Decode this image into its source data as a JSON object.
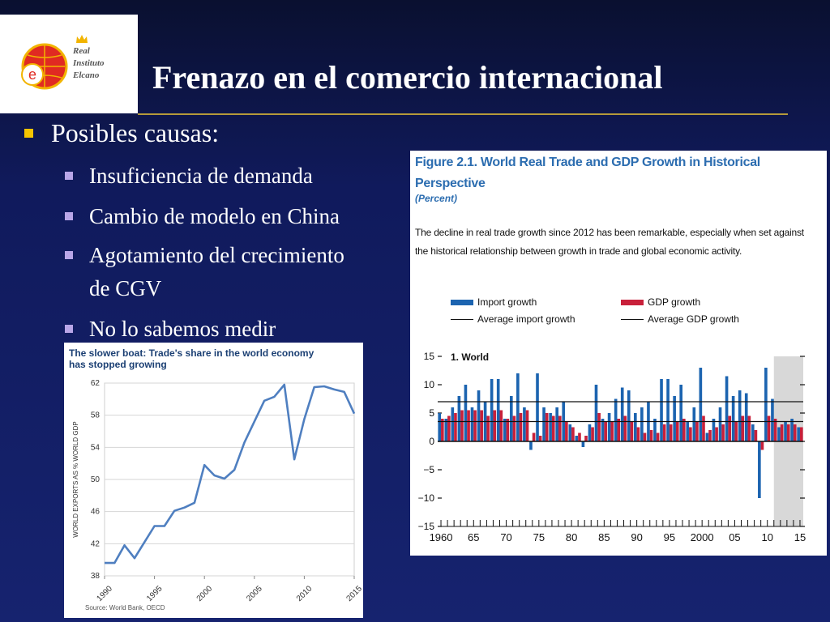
{
  "header": {
    "logo_text": [
      "Real",
      "Instituto",
      "Elcano"
    ],
    "logo_letter": "e",
    "title": "Frenazo en el comercio internacional"
  },
  "bullets": {
    "main": "Posibles causas:",
    "items": [
      "Insuficiencia de demanda",
      "Cambio de modelo en China",
      "Agotamiento del crecimiento",
      "de CGV",
      "No lo sabemos medir"
    ]
  },
  "colors": {
    "background": "#16236f",
    "bullet_yellow": "#f5c400",
    "bullet_lavender": "#b9a6e8",
    "rule_gold": "#b59a3a",
    "import_blue": "#1c64b0",
    "gdp_red": "#c8203a",
    "line_blue": "#4f7fc0"
  },
  "left_chart": {
    "title": "The slower boat: Trade's share in the world economy has stopped growing",
    "source": "Source: World Bank, OECD"
  },
  "right_figure": {
    "title_line1": "Figure 2.1. World Real Trade and GDP Growth in Historical",
    "title_line2": "Perspective",
    "subtitle": "(Percent)",
    "description": "The decline in real trade growth since 2012 has been remarkable, especially when set against the historical relationship between growth in trade and global economic activity.",
    "legend": {
      "import_growth": "Import growth",
      "gdp_growth": "GDP growth",
      "avg_import": "Average import growth",
      "avg_gdp": "Average GDP growth"
    },
    "panel_label": "1. World"
  },
  "chart_data": [
    {
      "type": "line",
      "title": "The slower boat: Trade's share in the world economy has stopped growing",
      "ylabel": "WORLD EXPORTS AS % WORLD GDP",
      "xlabel": "",
      "x_ticks": [
        "1990",
        "1995",
        "2000",
        "2005",
        "2010",
        "2015"
      ],
      "y_ticks": [
        "38",
        "42",
        "46",
        "50",
        "54",
        "58",
        "62"
      ],
      "ylim": [
        38,
        62
      ],
      "xlim": [
        1990,
        2015
      ],
      "grid": true,
      "series": [
        {
          "x": [
            1990,
            1991,
            1992,
            1993,
            1994,
            1995,
            1996,
            1997,
            1998,
            1999,
            2000,
            2001,
            2002,
            2003,
            2004,
            2005,
            2006,
            2007,
            2008,
            2009,
            2010,
            2011,
            2012,
            2013,
            2014,
            2015
          ],
          "y": [
            39.6,
            39.6,
            41.8,
            40.2,
            42.2,
            44.2,
            44.2,
            46.1,
            46.5,
            47.1,
            51.8,
            50.5,
            50.1,
            51.2,
            54.6,
            57.2,
            59.8,
            60.3,
            61.8,
            52.5,
            57.5,
            61.5,
            61.6,
            61.2,
            60.9,
            58.2
          ]
        }
      ],
      "source": "Source: World Bank, OECD"
    },
    {
      "type": "bar",
      "title": "1. World",
      "x_ticks": [
        "1960",
        "65",
        "70",
        "75",
        "80",
        "85",
        "90",
        "95",
        "2000",
        "05",
        "10",
        "15"
      ],
      "y_ticks": [
        "15",
        "10",
        "5",
        "0",
        "−5",
        "−10",
        "−15"
      ],
      "ylim": [
        -15,
        15
      ],
      "xlim": [
        1960,
        2016
      ],
      "shaded_region": [
        2012,
        2016
      ],
      "series": [
        {
          "name": "Import growth",
          "x": [
            1960,
            1961,
            1962,
            1963,
            1964,
            1965,
            1966,
            1967,
            1968,
            1969,
            1970,
            1971,
            1972,
            1973,
            1974,
            1975,
            1976,
            1977,
            1978,
            1979,
            1980,
            1981,
            1982,
            1983,
            1984,
            1985,
            1986,
            1987,
            1988,
            1989,
            1990,
            1991,
            1992,
            1993,
            1994,
            1995,
            1996,
            1997,
            1998,
            1999,
            2000,
            2001,
            2002,
            2003,
            2004,
            2005,
            2006,
            2007,
            2008,
            2009,
            2010,
            2011,
            2012,
            2013,
            2014,
            2015
          ],
          "values": [
            5.0,
            4.0,
            6.0,
            8.0,
            10.0,
            6.0,
            9.0,
            7.0,
            11.0,
            11.0,
            4.0,
            8.0,
            12.0,
            6.0,
            -1.5,
            12.0,
            6.0,
            5.0,
            6.0,
            7.0,
            3.0,
            1.0,
            -1.0,
            3.0,
            10.0,
            4.0,
            5.0,
            7.5,
            9.5,
            9.0,
            5.0,
            6.0,
            7.0,
            4.0,
            11.0,
            11.0,
            8.0,
            10.0,
            3.5,
            6.0,
            13.0,
            1.5,
            4.0,
            6.0,
            11.5,
            8.0,
            9.0,
            8.5,
            3.0,
            -10.0,
            13.0,
            7.5,
            2.5,
            3.5,
            4.0,
            2.5
          ]
        },
        {
          "name": "GDP growth",
          "values": [
            4.0,
            4.5,
            5.0,
            5.5,
            5.5,
            5.5,
            5.5,
            4.5,
            5.5,
            5.5,
            4.0,
            4.5,
            5.0,
            5.5,
            1.5,
            1.0,
            5.0,
            4.5,
            4.5,
            3.5,
            2.5,
            1.5,
            1.0,
            2.5,
            5.0,
            3.5,
            3.5,
            4.0,
            4.5,
            3.5,
            2.5,
            1.5,
            2.0,
            1.5,
            3.0,
            3.0,
            3.5,
            4.0,
            2.5,
            3.5,
            4.5,
            2.0,
            2.5,
            3.0,
            4.5,
            3.5,
            4.5,
            4.5,
            2.0,
            -1.5,
            4.5,
            4.0,
            3.0,
            3.0,
            3.0,
            2.5
          ]
        },
        {
          "name": "Average import growth",
          "values": [
            7.0
          ]
        },
        {
          "name": "Average GDP growth",
          "values": [
            3.5
          ]
        }
      ]
    }
  ]
}
